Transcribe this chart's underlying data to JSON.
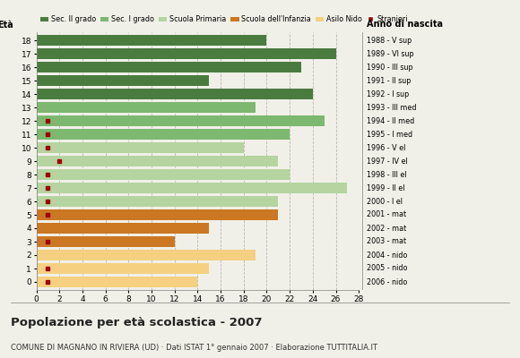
{
  "ages": [
    18,
    17,
    16,
    15,
    14,
    13,
    12,
    11,
    10,
    9,
    8,
    7,
    6,
    5,
    4,
    3,
    2,
    1,
    0
  ],
  "years": [
    "1988 - V sup",
    "1989 - VI sup",
    "1990 - III sup",
    "1991 - II sup",
    "1992 - I sup",
    "1993 - III med",
    "1994 - II med",
    "1995 - I med",
    "1996 - V el",
    "1997 - IV el",
    "1998 - III el",
    "1999 - II el",
    "2000 - I el",
    "2001 - mat",
    "2002 - mat",
    "2003 - mat",
    "2004 - nido",
    "2005 - nido",
    "2006 - nido"
  ],
  "bar_values": [
    20,
    26,
    23,
    15,
    24,
    19,
    25,
    22,
    18,
    21,
    22,
    27,
    21,
    21,
    15,
    12,
    19,
    15,
    14
  ],
  "stranieri": [
    0,
    0,
    0,
    0,
    0,
    0,
    1,
    1,
    1,
    2,
    1,
    1,
    1,
    1,
    0,
    1,
    0,
    1,
    1
  ],
  "bar_colors": [
    "#4a7c3f",
    "#4a7c3f",
    "#4a7c3f",
    "#4a7c3f",
    "#4a7c3f",
    "#7db870",
    "#7db870",
    "#7db870",
    "#b5d4a0",
    "#b5d4a0",
    "#b5d4a0",
    "#b5d4a0",
    "#b5d4a0",
    "#cc7722",
    "#cc7722",
    "#cc7722",
    "#f5d080",
    "#f5d080",
    "#f5d080"
  ],
  "legend_labels": [
    "Sec. II grado",
    "Sec. I grado",
    "Scuola Primaria",
    "Scuola dell'Infanzia",
    "Asilo Nido",
    "Stranieri"
  ],
  "legend_colors": [
    "#4a7c3f",
    "#7db870",
    "#b5d4a0",
    "#cc7722",
    "#f5d080",
    "#a00000"
  ],
  "title": "Popolazione per età scolastica - 2007",
  "subtitle": "COMUNE DI MAGNANO IN RIVIERA (UD) · Dati ISTAT 1° gennaio 2007 · Elaborazione TUTTITALIA.IT",
  "ylabel_left": "Età",
  "ylabel_right": "Anno di nascita",
  "xlim": [
    0,
    28
  ],
  "xticks": [
    0,
    2,
    4,
    6,
    8,
    10,
    12,
    14,
    16,
    18,
    20,
    22,
    24,
    26,
    28
  ],
  "bg_color": "#f0f0e8",
  "stranieri_color": "#a00000",
  "bar_height": 0.82
}
